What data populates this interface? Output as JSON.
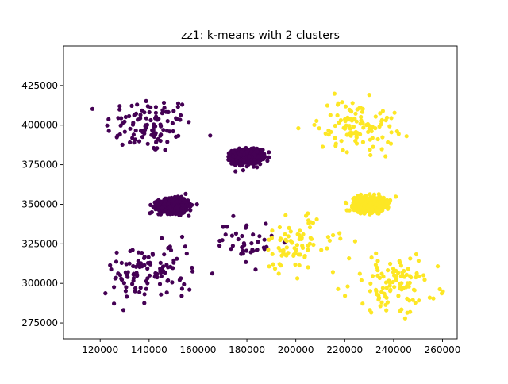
{
  "chart_data": {
    "type": "scatter",
    "title": "zz1: k-means with 2 clusters",
    "xlabel": "",
    "ylabel": "",
    "xlim": [
      105000,
      266000
    ],
    "ylim": [
      265000,
      450000
    ],
    "x_ticks": [
      120000,
      140000,
      160000,
      180000,
      200000,
      220000,
      240000,
      260000
    ],
    "y_ticks": [
      275000,
      300000,
      325000,
      350000,
      375000,
      400000,
      425000
    ],
    "grid": false,
    "legend": "none",
    "colors": {
      "cluster_0": "#440154",
      "cluster_1": "#fde725"
    },
    "clusters": [
      {
        "label": 0,
        "center": [
          140000,
          400000
        ],
        "spread": [
          9000,
          9000
        ],
        "count": 110
      },
      {
        "label": 0,
        "center": [
          180000,
          380000
        ],
        "spread": [
          3000,
          2200
        ],
        "count": 700
      },
      {
        "label": 0,
        "center": [
          150000,
          349000
        ],
        "spread": [
          3000,
          2200
        ],
        "count": 700
      },
      {
        "label": 0,
        "center": [
          140000,
          307000
        ],
        "spread": [
          9000,
          9000
        ],
        "count": 110
      },
      {
        "label": 0,
        "center": [
          180000,
          326000
        ],
        "spread": [
          6000,
          7000
        ],
        "count": 40
      },
      {
        "label": 1,
        "center": [
          225000,
          400000
        ],
        "spread": [
          8000,
          8000
        ],
        "count": 110
      },
      {
        "label": 1,
        "center": [
          230000,
          350000
        ],
        "spread": [
          3000,
          2200
        ],
        "count": 700
      },
      {
        "label": 1,
        "center": [
          200000,
          325000
        ],
        "spread": [
          8000,
          9000
        ],
        "count": 80
      },
      {
        "label": 1,
        "center": [
          240000,
          300000
        ],
        "spread": [
          9000,
          9000
        ],
        "count": 110
      }
    ]
  }
}
